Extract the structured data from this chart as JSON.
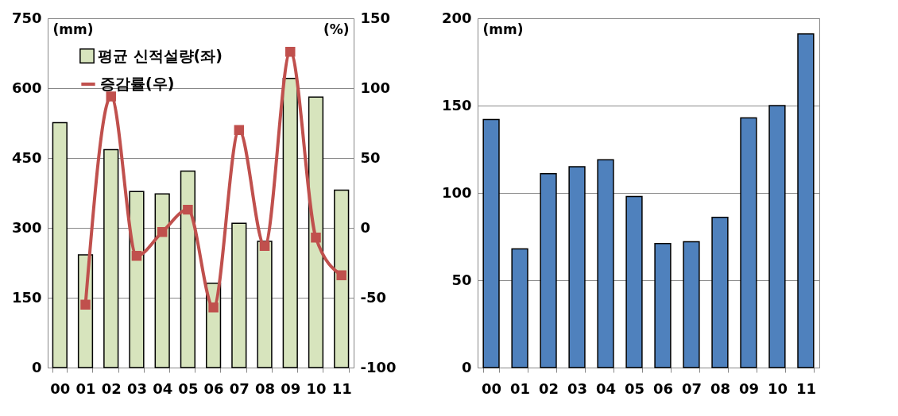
{
  "chart_data": [
    {
      "type": "bar",
      "categories": [
        "00",
        "01",
        "02",
        "03",
        "04",
        "05",
        "06",
        "07",
        "08",
        "09",
        "10",
        "11"
      ],
      "ylabel": "(mm)",
      "y2label": "(%)",
      "ylim": [
        0,
        750
      ],
      "yticks": [
        0,
        150,
        300,
        450,
        600,
        750
      ],
      "y2lim": [
        -100,
        150
      ],
      "y2ticks": [
        -100,
        -50,
        0,
        50,
        100,
        150
      ],
      "grid": "y",
      "legend": "top left",
      "marker": "square",
      "series": [
        {
          "name": "평균 신적설량(좌)",
          "color": "#d7e4bd",
          "values": [
            526,
            242,
            468,
            378,
            373,
            422,
            181,
            310,
            271,
            621,
            581,
            381
          ]
        },
        {
          "name": "증감률(우)",
          "type": "line",
          "axis": "y2",
          "color": "#c0504d",
          "values": [
            null,
            -55,
            94,
            -20,
            -3,
            13,
            -57,
            70,
            -13,
            126,
            -7,
            -34
          ]
        }
      ]
    },
    {
      "type": "bar",
      "categories": [
        "00",
        "01",
        "02",
        "03",
        "04",
        "05",
        "06",
        "07",
        "08",
        "09",
        "10",
        "11"
      ],
      "ylabel": "(mm)",
      "ylim": [
        0,
        200
      ],
      "yticks": [
        0,
        50,
        100,
        150,
        200
      ],
      "grid": "y",
      "color": "#4f81bd",
      "values": [
        142,
        68,
        111,
        115,
        119,
        98,
        71,
        72,
        86,
        143,
        150,
        191
      ]
    }
  ]
}
